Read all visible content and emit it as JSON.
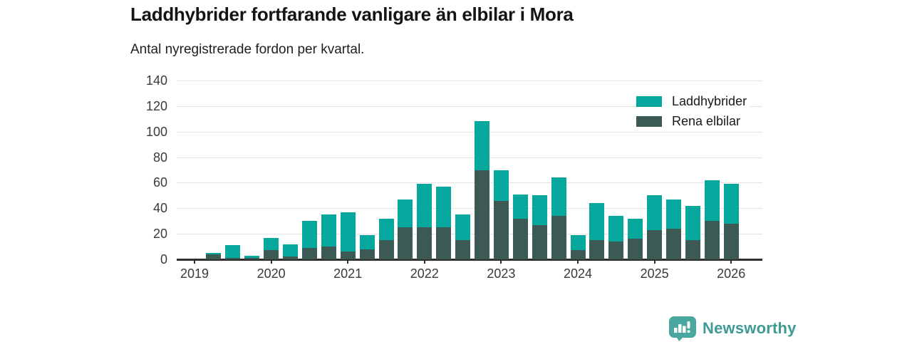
{
  "header": {
    "title": "Laddhybrider fortfarande vanligare än elbilar i Mora",
    "subtitle": "Antal nyregistrerade fordon per kvartal."
  },
  "legend": {
    "items": [
      {
        "label": "Laddhybrider",
        "color": "#04a89c"
      },
      {
        "label": "Rena elbilar",
        "color": "#3c5a53"
      }
    ]
  },
  "footer": {
    "brand": "Newsworthy",
    "logo_icon": "bar-chart-speech-bubble-icon",
    "brand_color": "#3f9a94",
    "icon_color": "#4aa79f"
  },
  "colors": {
    "laddhybrider": "#04a89c",
    "rena_elbilar": "#3c5a53",
    "gridline": "#e3e3e3",
    "axis": "#2e2e2e"
  },
  "chart_data": {
    "type": "bar",
    "stacked": true,
    "title": "Laddhybrider fortfarande vanligare än elbilar i Mora",
    "subtitle": "Antal nyregistrerade fordon per kvartal.",
    "xlabel": "",
    "ylabel": "Antal nyregistrerade fordon",
    "ylim": [
      0,
      140
    ],
    "yticks": [
      0,
      20,
      40,
      60,
      80,
      100,
      120,
      140
    ],
    "grid": "horizontal",
    "legend_position": "top-right",
    "x_tick_labels": [
      "2019",
      "2020",
      "2021",
      "2022",
      "2023",
      "2024",
      "2025",
      "2026"
    ],
    "categories": [
      "2019Q1",
      "2019Q2",
      "2019Q3",
      "2019Q4",
      "2020Q1",
      "2020Q2",
      "2020Q3",
      "2020Q4",
      "2021Q1",
      "2021Q2",
      "2021Q3",
      "2021Q4",
      "2022Q1",
      "2022Q2",
      "2022Q3",
      "2022Q4",
      "2023Q1",
      "2023Q2",
      "2023Q3",
      "2023Q4",
      "2024Q1",
      "2024Q2",
      "2024Q3",
      "2024Q4",
      "2025Q1",
      "2025Q2",
      "2025Q3",
      "2025Q4",
      "2026Q1"
    ],
    "series": [
      {
        "name": "Rena elbilar",
        "color": "#3c5a53",
        "values": [
          0,
          4,
          1,
          1,
          7,
          2,
          9,
          10,
          6,
          8,
          15,
          25,
          25,
          25,
          15,
          70,
          46,
          32,
          27,
          34,
          7,
          15,
          14,
          16,
          23,
          24,
          15,
          30,
          28
        ]
      },
      {
        "name": "Laddhybrider",
        "color": "#04a89c",
        "values": [
          0,
          1,
          10,
          2,
          10,
          10,
          21,
          25,
          31,
          11,
          17,
          22,
          34,
          32,
          20,
          38,
          24,
          19,
          23,
          30,
          12,
          29,
          20,
          16,
          27,
          23,
          27,
          32,
          31
        ]
      }
    ],
    "totals": [
      0,
      5,
      11,
      3,
      17,
      12,
      30,
      35,
      37,
      19,
      32,
      47,
      59,
      57,
      35,
      108,
      70,
      51,
      50,
      64,
      19,
      44,
      34,
      32,
      50,
      47,
      42,
      62,
      59
    ]
  }
}
